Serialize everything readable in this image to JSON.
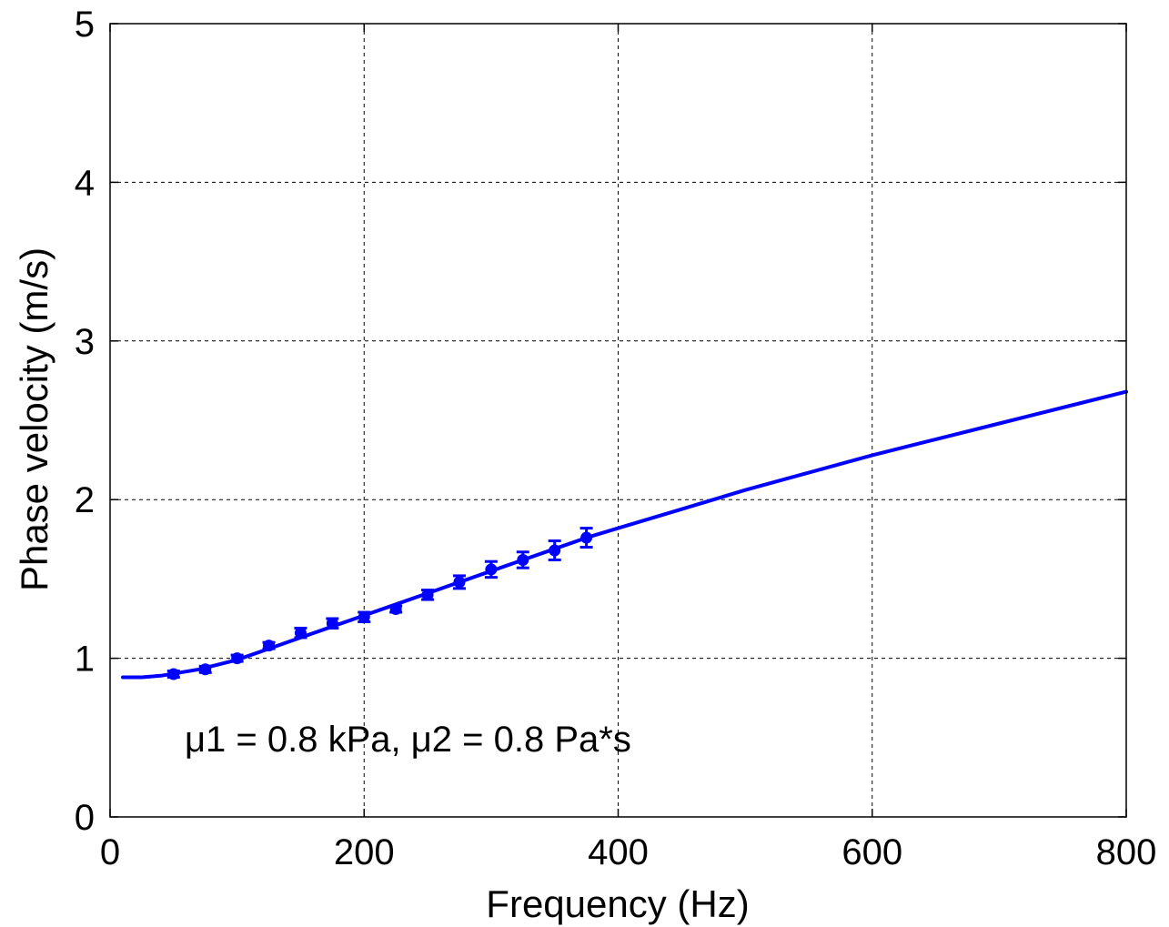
{
  "chart_data": {
    "type": "line",
    "title": "",
    "xlabel": "Frequency (Hz)",
    "ylabel": "Phase velocity (m/s)",
    "xlim": [
      0,
      800
    ],
    "ylim": [
      0,
      5
    ],
    "xticks": [
      0,
      200,
      400,
      600,
      800
    ],
    "yticks": [
      0,
      1,
      2,
      3,
      4,
      5
    ],
    "grid": true,
    "grid_style": "dashed",
    "colors": {
      "series": "#0000ff",
      "axes": "#000000",
      "grid": "#000000"
    },
    "annotation": "μ1 = 0.8 kPa, μ2 = 0.8 Pa*s",
    "series": [
      {
        "kind": "fit-line",
        "x": [
          10,
          25,
          40,
          55,
          70,
          85,
          100,
          125,
          150,
          175,
          200,
          225,
          250,
          275,
          300,
          325,
          350,
          375,
          400,
          450,
          500,
          550,
          600,
          650,
          700,
          750,
          800
        ],
        "y": [
          0.88,
          0.88,
          0.89,
          0.91,
          0.93,
          0.96,
          0.99,
          1.06,
          1.13,
          1.2,
          1.27,
          1.34,
          1.41,
          1.48,
          1.55,
          1.62,
          1.69,
          1.76,
          1.82,
          1.94,
          2.06,
          2.17,
          2.28,
          2.38,
          2.48,
          2.58,
          2.68
        ]
      },
      {
        "kind": "measured",
        "x": [
          50,
          75,
          100,
          125,
          150,
          175,
          200,
          225,
          250,
          275,
          300,
          325,
          350,
          375
        ],
        "y": [
          0.9,
          0.93,
          1.0,
          1.08,
          1.16,
          1.22,
          1.26,
          1.31,
          1.4,
          1.48,
          1.56,
          1.62,
          1.68,
          1.76
        ],
        "err": [
          0.02,
          0.02,
          0.02,
          0.02,
          0.03,
          0.03,
          0.03,
          0.02,
          0.03,
          0.04,
          0.05,
          0.05,
          0.06,
          0.06
        ]
      }
    ]
  }
}
